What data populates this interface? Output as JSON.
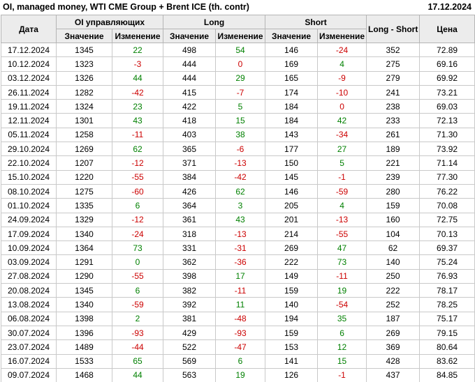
{
  "title": "OI, managed money, WTI CME Group + Brent ICE (th. contr)",
  "report_date": "17.12.2024",
  "colors": {
    "positive_change": "#008000",
    "negative_change": "#cc0000",
    "header_background": "#ececec",
    "cell_border": "#c9c9c9"
  },
  "chart_data": {
    "type": "table",
    "title": "OI, managed money, WTI CME Group + Brent ICE (th. contr)",
    "as_of_date": "17.12.2024",
    "headers": {
      "date": "Дата",
      "group_oi": "OI управляющих",
      "group_long": "Long",
      "group_short": "Short",
      "long_short": "Long - Short",
      "price": "Цена",
      "sub_value": "Значение",
      "sub_change": "Изменение"
    },
    "rows": [
      {
        "date": "17.12.2024",
        "oi": 1345,
        "oi_chg": 22,
        "oi_dir": "pos",
        "long": 498,
        "long_chg": 54,
        "long_dir": "pos",
        "short": 146,
        "short_chg": -24,
        "short_dir": "neg",
        "ls": 352,
        "price": "72.89"
      },
      {
        "date": "10.12.2024",
        "oi": 1323,
        "oi_chg": -3,
        "oi_dir": "neg",
        "long": 444,
        "long_chg": 0,
        "long_dir": "neg",
        "short": 169,
        "short_chg": 4,
        "short_dir": "pos",
        "ls": 275,
        "price": "69.16"
      },
      {
        "date": "03.12.2024",
        "oi": 1326,
        "oi_chg": 44,
        "oi_dir": "pos",
        "long": 444,
        "long_chg": 29,
        "long_dir": "pos",
        "short": 165,
        "short_chg": -9,
        "short_dir": "neg",
        "ls": 279,
        "price": "69.92"
      },
      {
        "date": "26.11.2024",
        "oi": 1282,
        "oi_chg": -42,
        "oi_dir": "neg",
        "long": 415,
        "long_chg": -7,
        "long_dir": "neg",
        "short": 174,
        "short_chg": -10,
        "short_dir": "neg",
        "ls": 241,
        "price": "73.21"
      },
      {
        "date": "19.11.2024",
        "oi": 1324,
        "oi_chg": 23,
        "oi_dir": "pos",
        "long": 422,
        "long_chg": 5,
        "long_dir": "pos",
        "short": 184,
        "short_chg": 0,
        "short_dir": "neg",
        "ls": 238,
        "price": "69.03"
      },
      {
        "date": "12.11.2024",
        "oi": 1301,
        "oi_chg": 43,
        "oi_dir": "pos",
        "long": 418,
        "long_chg": 15,
        "long_dir": "pos",
        "short": 184,
        "short_chg": 42,
        "short_dir": "pos",
        "ls": 233,
        "price": "72.13"
      },
      {
        "date": "05.11.2024",
        "oi": 1258,
        "oi_chg": -11,
        "oi_dir": "neg",
        "long": 403,
        "long_chg": 38,
        "long_dir": "pos",
        "short": 143,
        "short_chg": -34,
        "short_dir": "neg",
        "ls": 261,
        "price": "71.30"
      },
      {
        "date": "29.10.2024",
        "oi": 1269,
        "oi_chg": 62,
        "oi_dir": "pos",
        "long": 365,
        "long_chg": -6,
        "long_dir": "neg",
        "short": 177,
        "short_chg": 27,
        "short_dir": "pos",
        "ls": 189,
        "price": "73.92"
      },
      {
        "date": "22.10.2024",
        "oi": 1207,
        "oi_chg": -12,
        "oi_dir": "neg",
        "long": 371,
        "long_chg": -13,
        "long_dir": "neg",
        "short": 150,
        "short_chg": 5,
        "short_dir": "pos",
        "ls": 221,
        "price": "71.14"
      },
      {
        "date": "15.10.2024",
        "oi": 1220,
        "oi_chg": -55,
        "oi_dir": "neg",
        "long": 384,
        "long_chg": -42,
        "long_dir": "neg",
        "short": 145,
        "short_chg": -1,
        "short_dir": "neg",
        "ls": 239,
        "price": "77.30"
      },
      {
        "date": "08.10.2024",
        "oi": 1275,
        "oi_chg": -60,
        "oi_dir": "neg",
        "long": 426,
        "long_chg": 62,
        "long_dir": "pos",
        "short": 146,
        "short_chg": -59,
        "short_dir": "neg",
        "ls": 280,
        "price": "76.22"
      },
      {
        "date": "01.10.2024",
        "oi": 1335,
        "oi_chg": 6,
        "oi_dir": "pos",
        "long": 364,
        "long_chg": 3,
        "long_dir": "pos",
        "short": 205,
        "short_chg": 4,
        "short_dir": "pos",
        "ls": 159,
        "price": "70.08"
      },
      {
        "date": "24.09.2024",
        "oi": 1329,
        "oi_chg": -12,
        "oi_dir": "neg",
        "long": 361,
        "long_chg": 43,
        "long_dir": "pos",
        "short": 201,
        "short_chg": -13,
        "short_dir": "neg",
        "ls": 160,
        "price": "72.75"
      },
      {
        "date": "17.09.2024",
        "oi": 1340,
        "oi_chg": -24,
        "oi_dir": "neg",
        "long": 318,
        "long_chg": -13,
        "long_dir": "neg",
        "short": 214,
        "short_chg": -55,
        "short_dir": "neg",
        "ls": 104,
        "price": "70.13"
      },
      {
        "date": "10.09.2024",
        "oi": 1364,
        "oi_chg": 73,
        "oi_dir": "pos",
        "long": 331,
        "long_chg": -31,
        "long_dir": "neg",
        "short": 269,
        "short_chg": 47,
        "short_dir": "pos",
        "ls": 62,
        "price": "69.37"
      },
      {
        "date": "03.09.2024",
        "oi": 1291,
        "oi_chg": 0,
        "oi_dir": "pos",
        "long": 362,
        "long_chg": -36,
        "long_dir": "neg",
        "short": 222,
        "short_chg": 73,
        "short_dir": "pos",
        "ls": 140,
        "price": "75.24"
      },
      {
        "date": "27.08.2024",
        "oi": 1290,
        "oi_chg": -55,
        "oi_dir": "neg",
        "long": 398,
        "long_chg": 17,
        "long_dir": "pos",
        "short": 149,
        "short_chg": -11,
        "short_dir": "neg",
        "ls": 250,
        "price": "76.93"
      },
      {
        "date": "20.08.2024",
        "oi": 1345,
        "oi_chg": 6,
        "oi_dir": "pos",
        "long": 382,
        "long_chg": -11,
        "long_dir": "neg",
        "short": 159,
        "short_chg": 19,
        "short_dir": "pos",
        "ls": 222,
        "price": "78.17"
      },
      {
        "date": "13.08.2024",
        "oi": 1340,
        "oi_chg": -59,
        "oi_dir": "neg",
        "long": 392,
        "long_chg": 11,
        "long_dir": "pos",
        "short": 140,
        "short_chg": -54,
        "short_dir": "neg",
        "ls": 252,
        "price": "78.25"
      },
      {
        "date": "06.08.2024",
        "oi": 1398,
        "oi_chg": 2,
        "oi_dir": "pos",
        "long": 381,
        "long_chg": -48,
        "long_dir": "neg",
        "short": 194,
        "short_chg": 35,
        "short_dir": "pos",
        "ls": 187,
        "price": "75.17"
      },
      {
        "date": "30.07.2024",
        "oi": 1396,
        "oi_chg": -93,
        "oi_dir": "neg",
        "long": 429,
        "long_chg": -93,
        "long_dir": "neg",
        "short": 159,
        "short_chg": 6,
        "short_dir": "pos",
        "ls": 269,
        "price": "79.15"
      },
      {
        "date": "23.07.2024",
        "oi": 1489,
        "oi_chg": -44,
        "oi_dir": "neg",
        "long": 522,
        "long_chg": -47,
        "long_dir": "neg",
        "short": 153,
        "short_chg": 12,
        "short_dir": "pos",
        "ls": 369,
        "price": "80.64"
      },
      {
        "date": "16.07.2024",
        "oi": 1533,
        "oi_chg": 65,
        "oi_dir": "pos",
        "long": 569,
        "long_chg": 6,
        "long_dir": "pos",
        "short": 141,
        "short_chg": 15,
        "short_dir": "pos",
        "ls": 428,
        "price": "83.62"
      },
      {
        "date": "09.07.2024",
        "oi": 1468,
        "oi_chg": 44,
        "oi_dir": "pos",
        "long": 563,
        "long_chg": 19,
        "long_dir": "pos",
        "short": 126,
        "short_chg": -1,
        "short_dir": "neg",
        "ls": 437,
        "price": "84.85"
      }
    ]
  }
}
